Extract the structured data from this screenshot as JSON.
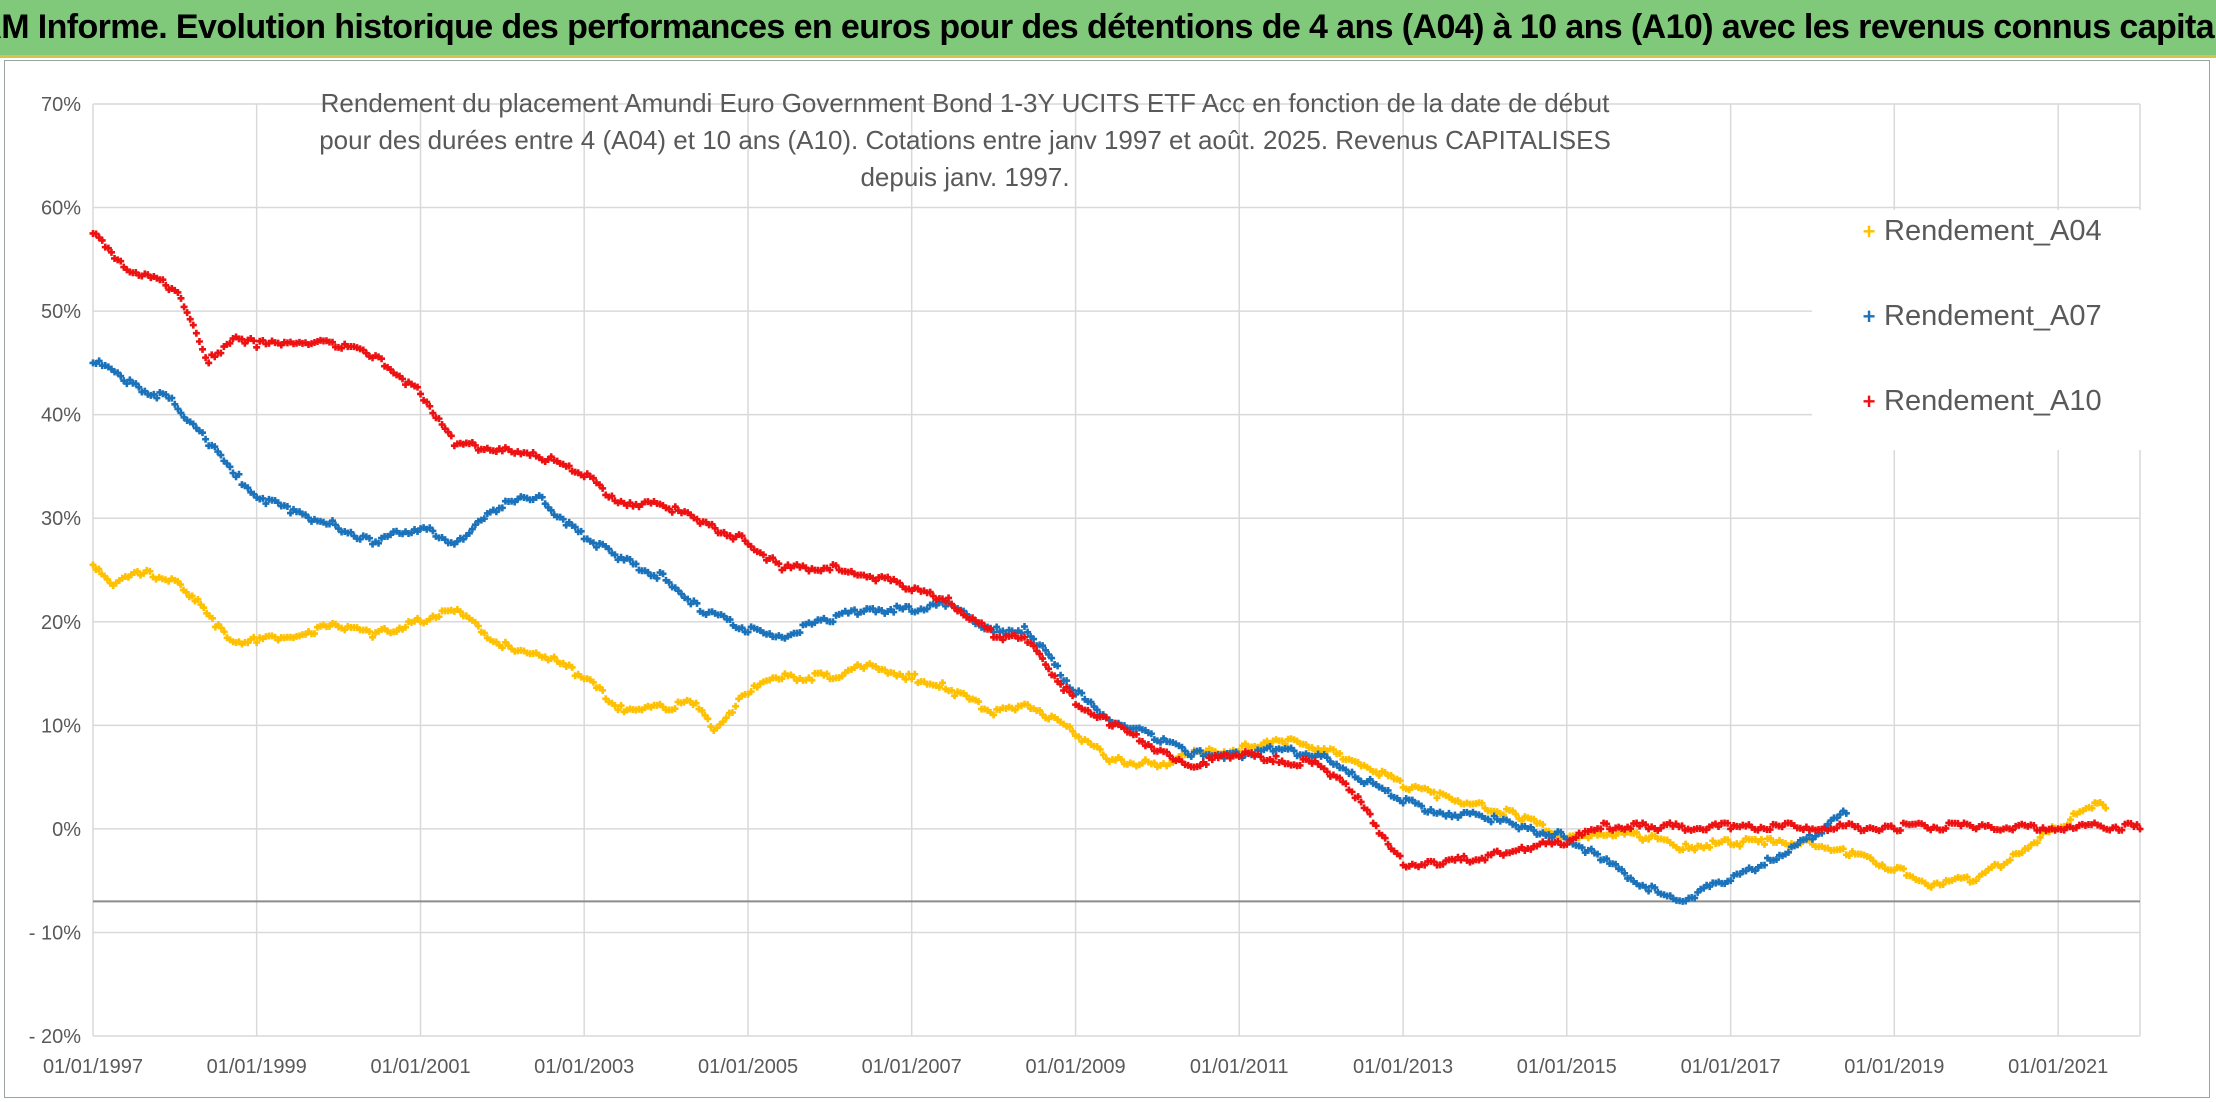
{
  "header": {
    "title": "ADAM Informe. Evolution historique des performances en euros pour des détentions de 4 ans (A04) à 10 ans (A10) avec les revenus connus capitalisés"
  },
  "chart_data": {
    "type": "scatter",
    "title": "Rendement du placement Amundi Euro Government Bond 1-3Y UCITS ETF Acc en fonction de la date de début pour des durées entre 4 (A04) et 10 ans (A10). Cotations entre janv 1997 et août. 2025. Revenus CAPITALISES depuis janv. 1997.",
    "xlabel": "",
    "ylabel": "",
    "x_ticks": [
      "01/01/1997",
      "01/01/1999",
      "01/01/2001",
      "01/01/2003",
      "01/01/2005",
      "01/01/2007",
      "01/01/2009",
      "01/01/2011",
      "01/01/2013",
      "01/01/2015",
      "01/01/2017",
      "01/01/2019",
      "01/01/2021"
    ],
    "y_ticks": [
      "70%",
      "60%",
      "50%",
      "40%",
      "30%",
      "20%",
      "10%",
      "0%",
      "- 10%",
      "- 20%"
    ],
    "xlim": [
      "1997-01-01",
      "2022-01-01"
    ],
    "ylim": [
      -20,
      70
    ],
    "grid": true,
    "legend_position": "top-right",
    "highlight_line_y": -7,
    "series": [
      {
        "name": "Rendement_A04",
        "color": "#ffc000",
        "points": [
          [
            "1997-01-01",
            25.5
          ],
          [
            "1997-04-01",
            23.5
          ],
          [
            "1997-08-01",
            24.5
          ],
          [
            "1998-01-01",
            24
          ],
          [
            "1998-04-01",
            22
          ],
          [
            "1998-07-01",
            19.5
          ],
          [
            "1998-10-01",
            18
          ],
          [
            "1999-01-01",
            18
          ],
          [
            "1999-06-01",
            18.5
          ],
          [
            "2000-01-01",
            19.5
          ],
          [
            "2000-06-01",
            18.5
          ],
          [
            "2001-01-01",
            20
          ],
          [
            "2001-06-01",
            21
          ],
          [
            "2002-01-01",
            17.5
          ],
          [
            "2002-06-01",
            17
          ],
          [
            "2003-01-01",
            14.5
          ],
          [
            "2003-06-01",
            11.5
          ],
          [
            "2004-01-01",
            11.5
          ],
          [
            "2004-05-01",
            12
          ],
          [
            "2004-08-01",
            9.5
          ],
          [
            "2005-01-01",
            13
          ],
          [
            "2005-06-01",
            14.5
          ],
          [
            "2006-01-01",
            14.5
          ],
          [
            "2006-06-01",
            15.5
          ],
          [
            "2007-01-01",
            14.5
          ],
          [
            "2007-06-01",
            13.5
          ],
          [
            "2008-01-01",
            11
          ],
          [
            "2008-06-01",
            12
          ],
          [
            "2009-01-01",
            9
          ],
          [
            "2009-06-01",
            6.5
          ],
          [
            "2010-01-01",
            6
          ],
          [
            "2010-06-01",
            7
          ],
          [
            "2011-01-01",
            7.5
          ],
          [
            "2011-06-01",
            8.5
          ],
          [
            "2012-01-01",
            7.5
          ],
          [
            "2012-06-01",
            6.5
          ],
          [
            "2013-01-01",
            4
          ],
          [
            "2013-06-01",
            3
          ],
          [
            "2014-01-01",
            2
          ],
          [
            "2014-06-01",
            1
          ],
          [
            "2015-01-01",
            -1
          ],
          [
            "2015-06-01",
            -0.5
          ],
          [
            "2016-01-01",
            -1
          ],
          [
            "2016-06-01",
            -2
          ],
          [
            "2017-01-01",
            -1.5
          ],
          [
            "2017-06-01",
            -1.5
          ],
          [
            "2018-01-01",
            -1.5
          ],
          [
            "2018-06-01",
            -2.5
          ],
          [
            "2019-01-01",
            -4
          ],
          [
            "2019-06-01",
            -5.5
          ],
          [
            "2020-01-01",
            -5
          ],
          [
            "2020-06-01",
            -3
          ],
          [
            "2021-01-01",
            0
          ],
          [
            "2021-06-01",
            2
          ],
          [
            "2021-08-01",
            2
          ]
        ]
      },
      {
        "name": "Rendement_A07",
        "color": "#1a72bb",
        "points": [
          [
            "1997-01-01",
            45
          ],
          [
            "1997-06-01",
            43
          ],
          [
            "1998-01-01",
            41
          ],
          [
            "1998-06-01",
            37
          ],
          [
            "1998-10-01",
            34
          ],
          [
            "1999-01-01",
            32
          ],
          [
            "1999-06-01",
            30.5
          ],
          [
            "2000-01-01",
            29
          ],
          [
            "2000-06-01",
            27.5
          ],
          [
            "2001-01-01",
            29
          ],
          [
            "2001-06-01",
            27.5
          ],
          [
            "2002-01-01",
            31
          ],
          [
            "2002-06-01",
            32
          ],
          [
            "2003-01-01",
            28
          ],
          [
            "2003-06-01",
            26
          ],
          [
            "2004-01-01",
            24
          ],
          [
            "2004-06-01",
            21
          ],
          [
            "2005-01-01",
            19
          ],
          [
            "2005-06-01",
            18.5
          ],
          [
            "2006-01-01",
            20
          ],
          [
            "2006-06-01",
            21
          ],
          [
            "2007-01-01",
            21
          ],
          [
            "2007-06-01",
            21.5
          ],
          [
            "2008-01-01",
            19
          ],
          [
            "2008-06-01",
            19
          ],
          [
            "2009-01-01",
            13
          ],
          [
            "2009-06-01",
            10.5
          ],
          [
            "2010-01-01",
            8.5
          ],
          [
            "2010-06-01",
            7
          ],
          [
            "2011-01-01",
            7
          ],
          [
            "2011-06-01",
            7.5
          ],
          [
            "2012-01-01",
            7
          ],
          [
            "2012-06-01",
            5
          ],
          [
            "2013-01-01",
            2.5
          ],
          [
            "2013-06-01",
            1.5
          ],
          [
            "2014-01-01",
            1
          ],
          [
            "2014-06-01",
            0
          ],
          [
            "2015-01-01",
            -1
          ],
          [
            "2015-06-01",
            -3
          ],
          [
            "2016-01-01",
            -6
          ],
          [
            "2016-06-01",
            -7
          ],
          [
            "2017-01-01",
            -5
          ],
          [
            "2017-06-01",
            -3.5
          ],
          [
            "2018-01-01",
            -1
          ],
          [
            "2018-06-01",
            1.5
          ]
        ]
      },
      {
        "name": "Rendement_A10",
        "color": "#ee1111",
        "points": [
          [
            "1997-01-01",
            57.5
          ],
          [
            "1997-06-01",
            54
          ],
          [
            "1998-01-01",
            52
          ],
          [
            "1998-06-01",
            45
          ],
          [
            "1998-10-01",
            47.5
          ],
          [
            "1999-01-01",
            46.5
          ],
          [
            "1999-06-01",
            47
          ],
          [
            "2000-01-01",
            46.5
          ],
          [
            "2000-06-01",
            45.5
          ],
          [
            "2001-01-01",
            42
          ],
          [
            "2001-06-01",
            37
          ],
          [
            "2002-01-01",
            36.5
          ],
          [
            "2002-06-01",
            36
          ],
          [
            "2003-01-01",
            34
          ],
          [
            "2003-06-01",
            31.5
          ],
          [
            "2004-01-01",
            31
          ],
          [
            "2004-06-01",
            29.5
          ],
          [
            "2005-01-01",
            27.5
          ],
          [
            "2005-06-01",
            25
          ],
          [
            "2006-01-01",
            25
          ],
          [
            "2006-06-01",
            24.5
          ],
          [
            "2007-01-01",
            23
          ],
          [
            "2007-06-01",
            22
          ],
          [
            "2008-01-01",
            18.5
          ],
          [
            "2008-06-01",
            18
          ],
          [
            "2009-01-01",
            12
          ],
          [
            "2009-06-01",
            10
          ],
          [
            "2010-01-01",
            7.5
          ],
          [
            "2010-06-01",
            6
          ],
          [
            "2011-01-01",
            7
          ],
          [
            "2011-06-01",
            6.5
          ],
          [
            "2012-01-01",
            6
          ],
          [
            "2012-06-01",
            3
          ],
          [
            "2013-01-01",
            -3.5
          ],
          [
            "2013-06-01",
            -3.5
          ],
          [
            "2014-01-01",
            -3
          ],
          [
            "2014-06-01",
            -2
          ],
          [
            "2015-01-01",
            -1.5
          ],
          [
            "2015-06-01",
            0
          ],
          [
            "2016-01-01",
            0
          ],
          [
            "2017-01-01",
            0
          ],
          [
            "2018-01-01",
            0
          ],
          [
            "2019-01-01",
            0
          ],
          [
            "2020-01-01",
            0
          ],
          [
            "2021-01-01",
            0
          ],
          [
            "2022-01-01",
            0
          ]
        ]
      }
    ]
  }
}
